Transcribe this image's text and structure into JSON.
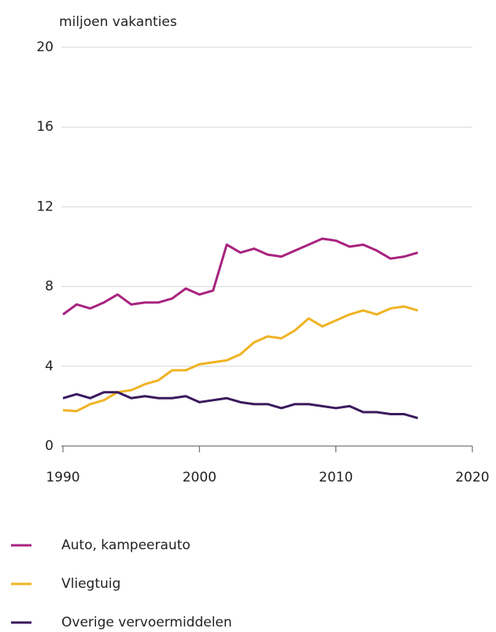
{
  "chart_data": {
    "type": "line",
    "y_label": "miljoen vakanties",
    "x": [
      1990,
      1991,
      1992,
      1993,
      1994,
      1995,
      1996,
      1997,
      1998,
      1999,
      2000,
      2001,
      2002,
      2003,
      2004,
      2005,
      2006,
      2007,
      2008,
      2009,
      2010,
      2011,
      2012,
      2013,
      2014,
      2015,
      2016
    ],
    "series": [
      {
        "name": "Auto, kampeerauto",
        "color": "#a8237f",
        "values": [
          6.6,
          7.1,
          6.9,
          7.2,
          7.6,
          7.1,
          7.2,
          7.2,
          7.4,
          7.9,
          7.6,
          7.8,
          10.1,
          9.7,
          9.9,
          9.6,
          9.5,
          9.8,
          10.1,
          10.4,
          10.3,
          10.0,
          10.1,
          9.8,
          9.4,
          9.5,
          9.7
        ]
      },
      {
        "name": "Vliegtuig",
        "color": "#f0b323",
        "values": [
          1.8,
          1.75,
          2.1,
          2.3,
          2.7,
          2.8,
          3.1,
          3.3,
          3.8,
          3.8,
          4.1,
          4.2,
          4.3,
          4.6,
          5.2,
          5.5,
          5.4,
          5.8,
          6.4,
          6.0,
          6.3,
          6.6,
          6.8,
          6.6,
          6.9,
          7.0,
          6.8
        ]
      },
      {
        "name": "Overige vervoermiddelen",
        "color": "#3a1a5e",
        "values": [
          2.4,
          2.6,
          2.4,
          2.7,
          2.7,
          2.4,
          2.5,
          2.4,
          2.4,
          2.5,
          2.2,
          2.3,
          2.4,
          2.2,
          2.1,
          2.1,
          1.9,
          2.1,
          2.1,
          2.0,
          1.9,
          2.0,
          1.7,
          1.7,
          1.6,
          1.6,
          1.4
        ]
      }
    ],
    "xlim": [
      1990,
      2020
    ],
    "xticks": [
      1990,
      2000,
      2010,
      2020
    ],
    "ylim": [
      0,
      20
    ],
    "yticks": [
      0,
      4,
      8,
      12,
      16,
      20
    ],
    "grid": true,
    "legend": "bottom"
  }
}
